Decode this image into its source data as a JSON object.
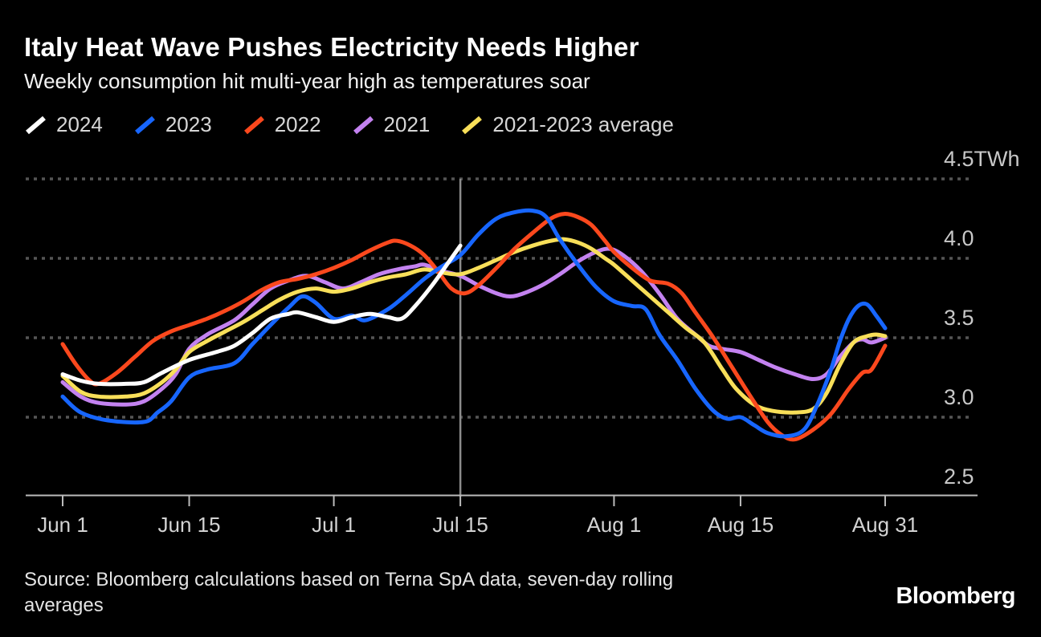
{
  "header": {
    "title": "Italy Heat Wave Pushes Electricity Needs Higher",
    "subtitle": "Weekly consumption hit multi-year high as temperatures soar"
  },
  "legend": [
    {
      "label": "2024",
      "color": "#ffffff"
    },
    {
      "label": "2023",
      "color": "#1766ff"
    },
    {
      "label": "2022",
      "color": "#fb481d"
    },
    {
      "label": "2021",
      "color": "#c382f0"
    },
    {
      "label": "2021-2023 average",
      "color": "#f8df59"
    }
  ],
  "source": {
    "line1": "Source: Bloomberg calculations based on Terna SpA data, seven-day rolling",
    "line2": "averages"
  },
  "logo_text": "Bloomberg",
  "colors": {
    "background": "#000000",
    "grid": "#555555",
    "axis": "#bbbbbb",
    "x_tick_label": "#d2d2d2",
    "y_tick_label": "#c8c8c8",
    "vertical_rule": "#8c8c8c"
  },
  "chart_data": {
    "type": "line",
    "title": "Italy Heat Wave Pushes Electricity Needs Higher",
    "subtitle": "Weekly consumption hit multi-year high as temperatures soar",
    "unit": "TWh",
    "ylim": [
      2.5,
      4.5
    ],
    "grid": "horizontal-dotted",
    "legend_position": "top",
    "x_axis_note": "x = days since Jun 1 (0 = Jun 1, 91 = Aug 31)",
    "yticks": [
      {
        "value": 4.5,
        "label": "4.5TWh"
      },
      {
        "value": 4.0,
        "label": "4.0"
      },
      {
        "value": 3.5,
        "label": "3.5"
      },
      {
        "value": 3.0,
        "label": "3.0"
      },
      {
        "value": 2.5,
        "label": "2.5"
      }
    ],
    "xticks": [
      {
        "day": 0,
        "label": "Jun 1"
      },
      {
        "day": 14,
        "label": "Jun 15"
      },
      {
        "day": 30,
        "label": "Jul 1"
      },
      {
        "day": 44,
        "label": "Jul 15"
      },
      {
        "day": 61,
        "label": "Aug 1"
      },
      {
        "day": 75,
        "label": "Aug 15"
      },
      {
        "day": 91,
        "label": "Aug 31"
      }
    ],
    "vertical_rule_day": 44,
    "series": [
      {
        "name": "2024",
        "color": "#ffffff",
        "z": 5,
        "points": [
          [
            0,
            3.27
          ],
          [
            2,
            3.23
          ],
          [
            4,
            3.21
          ],
          [
            7,
            3.21
          ],
          [
            9,
            3.22
          ],
          [
            11,
            3.28
          ],
          [
            14,
            3.36
          ],
          [
            17,
            3.41
          ],
          [
            19,
            3.45
          ],
          [
            21,
            3.53
          ],
          [
            23,
            3.62
          ],
          [
            25,
            3.65
          ],
          [
            26,
            3.66
          ],
          [
            28,
            3.63
          ],
          [
            30,
            3.6
          ],
          [
            32,
            3.63
          ],
          [
            34,
            3.65
          ],
          [
            36,
            3.63
          ],
          [
            37.5,
            3.62
          ],
          [
            39,
            3.7
          ],
          [
            41,
            3.84
          ],
          [
            43,
            4.0
          ],
          [
            44,
            4.08
          ]
        ]
      },
      {
        "name": "2023",
        "color": "#1766ff",
        "z": 4,
        "points": [
          [
            0,
            3.13
          ],
          [
            2,
            3.03
          ],
          [
            5,
            2.98
          ],
          [
            9,
            2.97
          ],
          [
            10.5,
            3.03
          ],
          [
            12,
            3.1
          ],
          [
            14,
            3.25
          ],
          [
            16,
            3.3
          ],
          [
            19,
            3.34
          ],
          [
            21,
            3.46
          ],
          [
            23,
            3.58
          ],
          [
            25,
            3.69
          ],
          [
            26.5,
            3.76
          ],
          [
            28,
            3.72
          ],
          [
            30,
            3.62
          ],
          [
            32,
            3.64
          ],
          [
            33.5,
            3.61
          ],
          [
            36,
            3.68
          ],
          [
            38,
            3.77
          ],
          [
            40,
            3.87
          ],
          [
            42,
            3.95
          ],
          [
            44,
            4.02
          ],
          [
            46,
            4.15
          ],
          [
            48,
            4.25
          ],
          [
            50,
            4.29
          ],
          [
            52,
            4.3
          ],
          [
            53.5,
            4.26
          ],
          [
            55,
            4.12
          ],
          [
            57,
            3.96
          ],
          [
            59,
            3.82
          ],
          [
            61,
            3.73
          ],
          [
            63,
            3.7
          ],
          [
            64.5,
            3.68
          ],
          [
            66,
            3.52
          ],
          [
            68,
            3.36
          ],
          [
            70,
            3.18
          ],
          [
            72,
            3.04
          ],
          [
            73.5,
            2.99
          ],
          [
            75,
            3.0
          ],
          [
            76.5,
            2.95
          ],
          [
            78,
            2.9
          ],
          [
            80,
            2.88
          ],
          [
            82,
            2.92
          ],
          [
            83.5,
            3.08
          ],
          [
            85,
            3.3
          ],
          [
            86,
            3.48
          ],
          [
            87,
            3.62
          ],
          [
            88,
            3.7
          ],
          [
            89,
            3.71
          ],
          [
            90,
            3.64
          ],
          [
            91,
            3.56
          ]
        ]
      },
      {
        "name": "2022",
        "color": "#fb481d",
        "z": 3,
        "points": [
          [
            0,
            3.46
          ],
          [
            1.5,
            3.33
          ],
          [
            3,
            3.23
          ],
          [
            4,
            3.21
          ],
          [
            6,
            3.28
          ],
          [
            8,
            3.38
          ],
          [
            10,
            3.48
          ],
          [
            12,
            3.54
          ],
          [
            14,
            3.58
          ],
          [
            16,
            3.62
          ],
          [
            18,
            3.67
          ],
          [
            20,
            3.73
          ],
          [
            22,
            3.8
          ],
          [
            24,
            3.85
          ],
          [
            26,
            3.87
          ],
          [
            28,
            3.9
          ],
          [
            30,
            3.94
          ],
          [
            32,
            3.99
          ],
          [
            34,
            4.05
          ],
          [
            36,
            4.1
          ],
          [
            37,
            4.11
          ],
          [
            38.5,
            4.08
          ],
          [
            40,
            4.02
          ],
          [
            41.5,
            3.92
          ],
          [
            43,
            3.81
          ],
          [
            44.5,
            3.78
          ],
          [
            46,
            3.83
          ],
          [
            48,
            3.94
          ],
          [
            50,
            4.06
          ],
          [
            52,
            4.16
          ],
          [
            54,
            4.25
          ],
          [
            55.5,
            4.28
          ],
          [
            57,
            4.26
          ],
          [
            58.5,
            4.21
          ],
          [
            60,
            4.11
          ],
          [
            61,
            4.04
          ],
          [
            63,
            3.94
          ],
          [
            65,
            3.86
          ],
          [
            67,
            3.84
          ],
          [
            68.5,
            3.78
          ],
          [
            70,
            3.66
          ],
          [
            72,
            3.5
          ],
          [
            74,
            3.32
          ],
          [
            76,
            3.14
          ],
          [
            78,
            2.97
          ],
          [
            79.5,
            2.89
          ],
          [
            81,
            2.86
          ],
          [
            83,
            2.92
          ],
          [
            85,
            3.02
          ],
          [
            87,
            3.18
          ],
          [
            88.5,
            3.28
          ],
          [
            89.5,
            3.3
          ],
          [
            91,
            3.45
          ]
        ]
      },
      {
        "name": "2021",
        "color": "#c382f0",
        "z": 1,
        "points": [
          [
            0,
            3.22
          ],
          [
            2,
            3.13
          ],
          [
            4,
            3.09
          ],
          [
            7,
            3.08
          ],
          [
            9,
            3.1
          ],
          [
            11,
            3.18
          ],
          [
            12.5,
            3.27
          ],
          [
            14,
            3.43
          ],
          [
            16,
            3.52
          ],
          [
            19,
            3.61
          ],
          [
            21,
            3.71
          ],
          [
            23,
            3.81
          ],
          [
            25,
            3.86
          ],
          [
            27,
            3.89
          ],
          [
            29,
            3.85
          ],
          [
            31,
            3.81
          ],
          [
            33,
            3.85
          ],
          [
            35,
            3.9
          ],
          [
            37,
            3.93
          ],
          [
            39,
            3.95
          ],
          [
            40,
            3.96
          ],
          [
            42,
            3.92
          ],
          [
            44,
            3.89
          ],
          [
            46,
            3.83
          ],
          [
            48,
            3.78
          ],
          [
            49.5,
            3.76
          ],
          [
            51,
            3.78
          ],
          [
            53,
            3.83
          ],
          [
            55,
            3.9
          ],
          [
            57,
            3.98
          ],
          [
            59,
            4.04
          ],
          [
            60.5,
            4.06
          ],
          [
            62,
            4.02
          ],
          [
            64,
            3.92
          ],
          [
            66,
            3.78
          ],
          [
            68,
            3.62
          ],
          [
            70,
            3.52
          ],
          [
            71.5,
            3.45
          ],
          [
            73,
            3.43
          ],
          [
            75,
            3.41
          ],
          [
            77,
            3.36
          ],
          [
            79,
            3.31
          ],
          [
            81,
            3.27
          ],
          [
            83,
            3.24
          ],
          [
            84.5,
            3.27
          ],
          [
            86,
            3.38
          ],
          [
            87.5,
            3.47
          ],
          [
            88.5,
            3.49
          ],
          [
            89.5,
            3.47
          ],
          [
            91,
            3.5
          ]
        ]
      },
      {
        "name": "2021-2023 average",
        "color": "#f8df59",
        "z": 2,
        "points": [
          [
            0,
            3.26
          ],
          [
            2,
            3.16
          ],
          [
            4,
            3.13
          ],
          [
            7,
            3.13
          ],
          [
            9,
            3.15
          ],
          [
            11,
            3.22
          ],
          [
            12.5,
            3.3
          ],
          [
            14,
            3.41
          ],
          [
            16,
            3.48
          ],
          [
            18,
            3.54
          ],
          [
            20,
            3.6
          ],
          [
            22,
            3.67
          ],
          [
            24,
            3.74
          ],
          [
            26,
            3.79
          ],
          [
            28,
            3.81
          ],
          [
            30,
            3.79
          ],
          [
            32,
            3.81
          ],
          [
            34,
            3.85
          ],
          [
            36,
            3.88
          ],
          [
            38,
            3.9
          ],
          [
            40,
            3.93
          ],
          [
            42,
            3.91
          ],
          [
            44,
            3.9
          ],
          [
            46,
            3.94
          ],
          [
            48,
            3.99
          ],
          [
            50,
            4.04
          ],
          [
            52,
            4.08
          ],
          [
            54,
            4.11
          ],
          [
            55.5,
            4.12
          ],
          [
            57,
            4.1
          ],
          [
            58.5,
            4.06
          ],
          [
            60,
            4.0
          ],
          [
            61,
            3.96
          ],
          [
            63,
            3.86
          ],
          [
            65,
            3.76
          ],
          [
            67,
            3.66
          ],
          [
            69,
            3.56
          ],
          [
            71,
            3.47
          ],
          [
            73,
            3.3
          ],
          [
            74.5,
            3.18
          ],
          [
            76.5,
            3.08
          ],
          [
            78.5,
            3.04
          ],
          [
            81,
            3.03
          ],
          [
            83,
            3.05
          ],
          [
            84.5,
            3.15
          ],
          [
            86,
            3.33
          ],
          [
            87.5,
            3.47
          ],
          [
            89,
            3.51
          ],
          [
            90,
            3.52
          ],
          [
            91,
            3.51
          ]
        ]
      }
    ]
  }
}
